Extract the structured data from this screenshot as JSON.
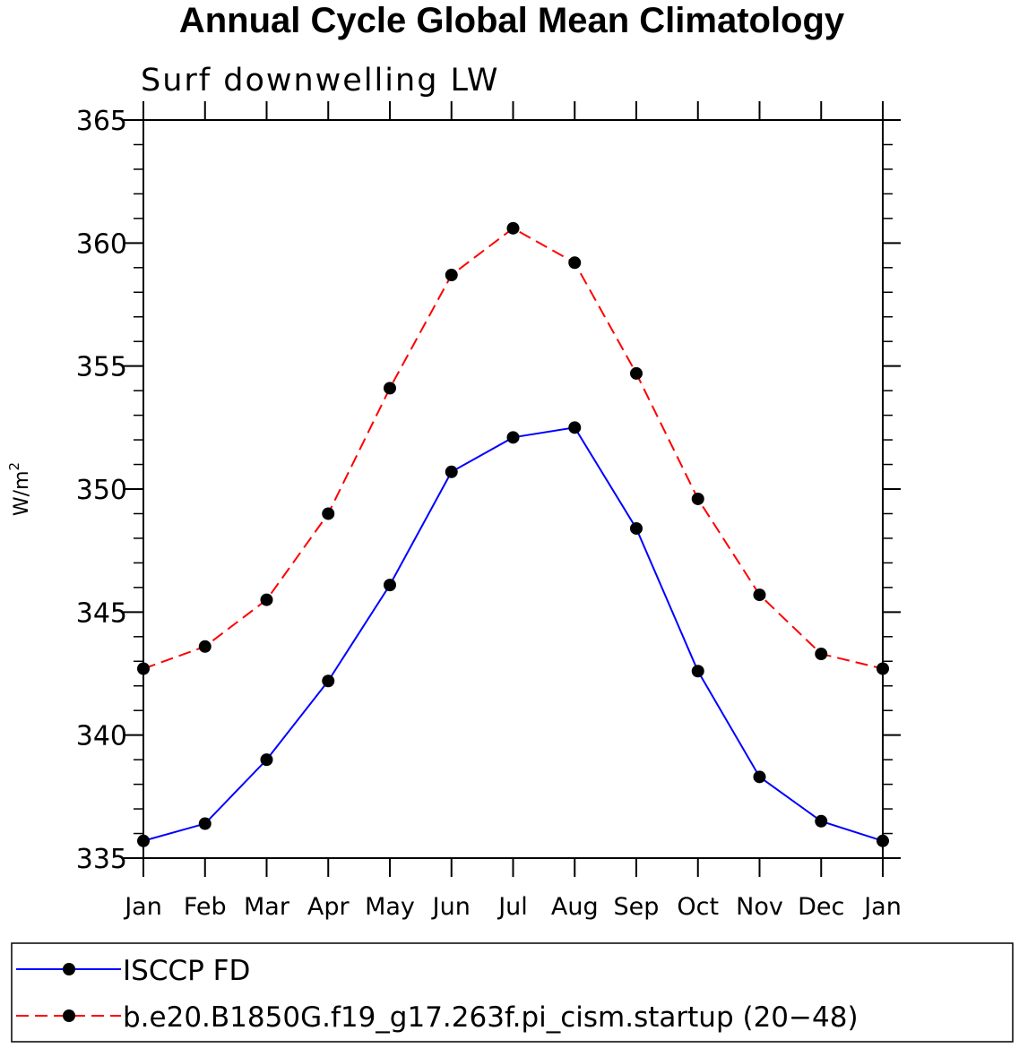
{
  "chart_data": {
    "type": "line",
    "title": "Annual Cycle Global Mean Climatology",
    "subtitle": "Surf downwelling LW",
    "ylabel": "W/m",
    "ylabel_sup": "2",
    "xlabel": "",
    "ylim": [
      335,
      365
    ],
    "yticks": [
      "335",
      "340",
      "345",
      "350",
      "355",
      "360",
      "365"
    ],
    "categories": [
      "Jan",
      "Feb",
      "Mar",
      "Apr",
      "May",
      "Jun",
      "Jul",
      "Aug",
      "Sep",
      "Oct",
      "Nov",
      "Dec",
      "Jan"
    ],
    "series": [
      {
        "name": "ISCCP FD",
        "color": "#0000ff",
        "style": "solid",
        "values": [
          335.7,
          336.4,
          339.0,
          342.2,
          346.1,
          350.7,
          352.1,
          352.5,
          348.4,
          342.6,
          338.3,
          336.5,
          335.7
        ]
      },
      {
        "name": "b.e20.B1850G.f19_g17.263f.pi_cism.startup (20−48)",
        "color": "#ff0000",
        "style": "dashed",
        "values": [
          342.7,
          343.6,
          345.5,
          349.0,
          354.1,
          358.7,
          360.6,
          359.2,
          354.7,
          349.6,
          345.7,
          343.3,
          342.7
        ]
      }
    ],
    "legend_position": "bottom"
  }
}
